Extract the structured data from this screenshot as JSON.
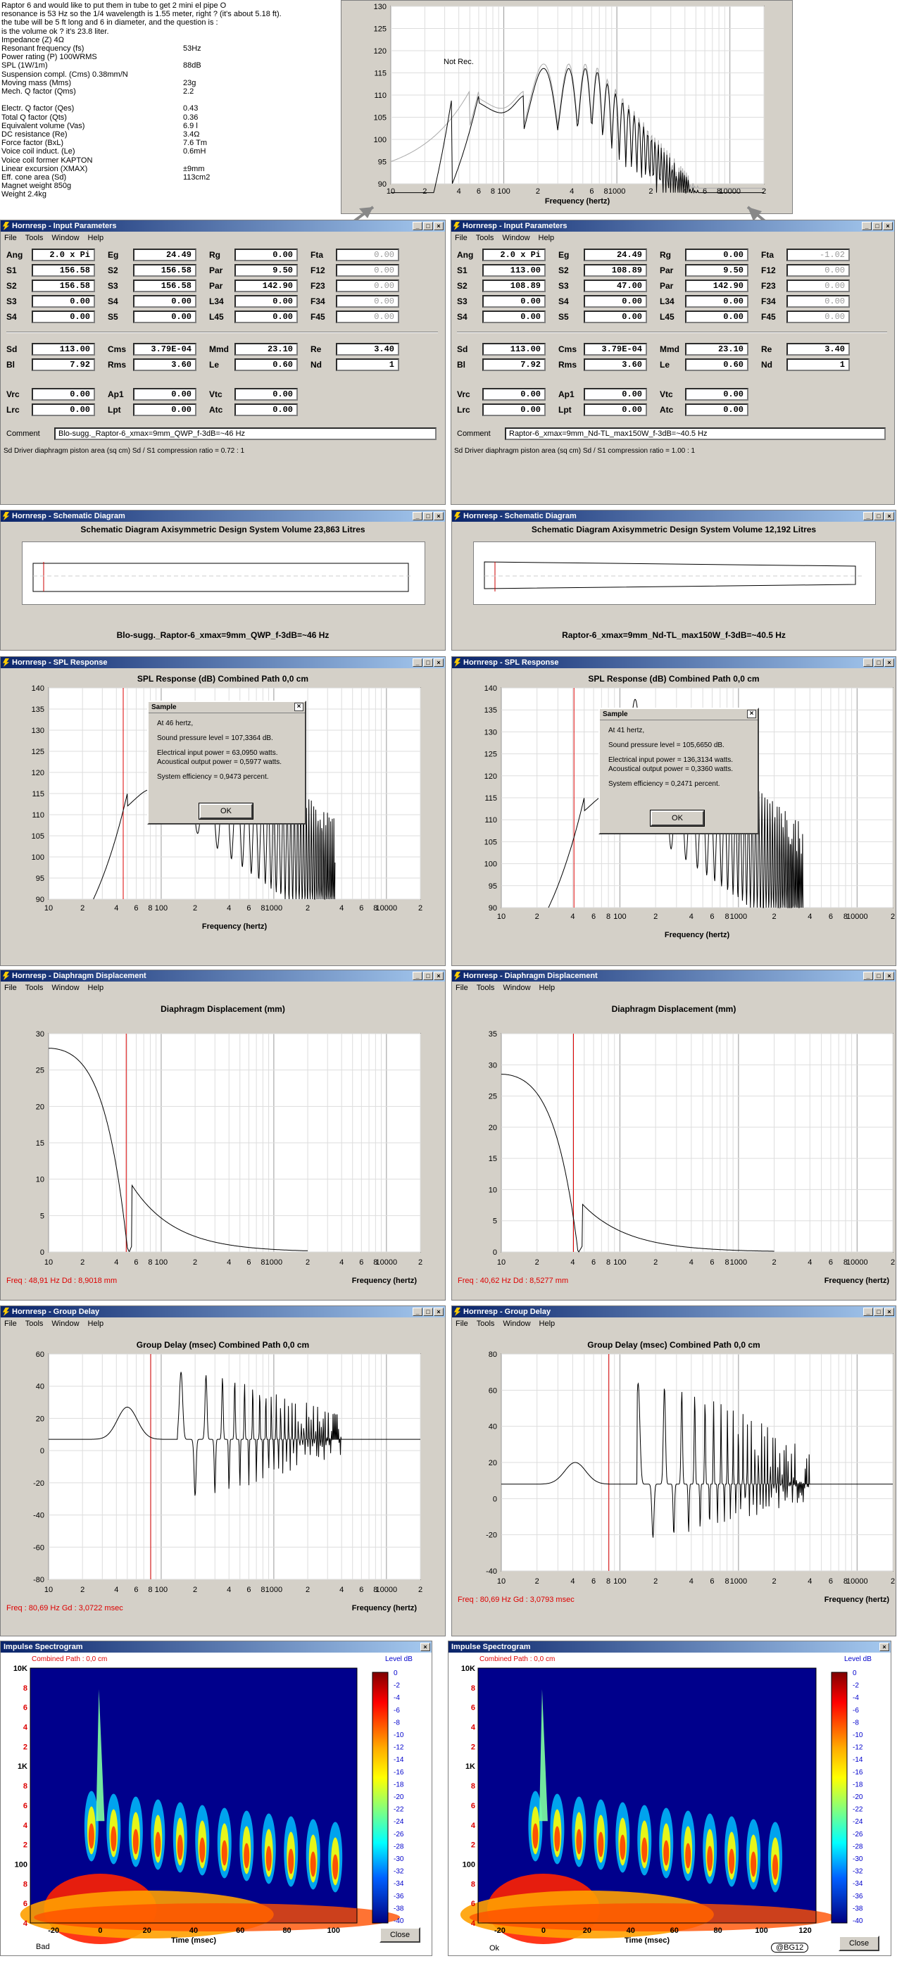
{
  "intro": {
    "lines": [
      "Raptor 6 and would like to put them in tube to get 2 mini el pipe O",
      "resonance is 53 Hz so the 1/4 wavelength is 1.55 meter, right ? (it's about 5.18 ft).",
      "the tube will be 5 ft long and 6 in diameter, and the question is :",
      "is the volume ok ? it's 23.8 liter."
    ],
    "specs": [
      [
        "Impedance (Z)    4Ω",
        ""
      ],
      [
        "Resonant frequency (fs)",
        "53Hz"
      ],
      [
        "Power rating (P) 100WRMS",
        ""
      ],
      [
        "SPL (1W/1m)",
        "88dB"
      ],
      [
        "Suspension compl. (Cms) 0.38mm/N",
        ""
      ],
      [
        "Moving mass (Mms)",
        "23g"
      ],
      [
        "Mech. Q factor (Qms)",
        "2.2"
      ],
      [
        "",
        ""
      ],
      [
        "Electr. Q factor (Qes)",
        "0.43"
      ],
      [
        "Total Q factor (Qts)",
        "0.36"
      ],
      [
        "Equivalent volume (Vas)",
        "6.9 l"
      ],
      [
        "DC resistance (Re)",
        "3.4Ω"
      ],
      [
        "Force factor (BxL)",
        "7.6 Tm"
      ],
      [
        "Voice coil induct. (Le)",
        "0.6mH"
      ],
      [
        "Voice coil former KAPTON",
        ""
      ],
      [
        "Linear excursion (XMAX)",
        "±9mm"
      ],
      [
        "Eff. cone area (Sd)",
        "113cm2"
      ],
      [
        "Magnet weight 850g",
        ""
      ],
      [
        "Weight  2.4kg",
        ""
      ]
    ]
  },
  "topchart": {
    "annotation": "Not Rec.",
    "xlabel": "Frequency (hertz)",
    "yticks": [
      "130",
      "125",
      "120",
      "115",
      "110",
      "105",
      "100",
      "95",
      "90"
    ],
    "xticks": [
      "10",
      "2",
      "4",
      "6",
      "8",
      "100",
      "2",
      "4",
      "6",
      "8",
      "1000",
      "2",
      "4",
      "6",
      "8",
      "10000",
      "2"
    ]
  },
  "menu": [
    "File",
    "Tools",
    "Window",
    "Help"
  ],
  "input_left": {
    "title": "Hornresp - Input Parameters",
    "rows1": [
      [
        "Ang",
        "2.0 x Pi",
        "Eg",
        "24.49",
        "Rg",
        "0.00",
        "Fta",
        "0.00"
      ],
      [
        "S1",
        "156.58",
        "S2",
        "156.58",
        "Par",
        "9.50",
        "F12",
        "0.00"
      ],
      [
        "S2",
        "156.58",
        "S3",
        "156.58",
        "Par",
        "142.90",
        "F23",
        "0.00"
      ],
      [
        "S3",
        "0.00",
        "S4",
        "0.00",
        "L34",
        "0.00",
        "F34",
        "0.00"
      ],
      [
        "S4",
        "0.00",
        "S5",
        "0.00",
        "L45",
        "0.00",
        "F45",
        "0.00"
      ]
    ],
    "rows2": [
      [
        "Sd",
        "113.00",
        "Cms",
        "3.79E-04",
        "Mmd",
        "23.10",
        "Re",
        "3.40"
      ],
      [
        "Bl",
        "7.92",
        "Rms",
        "3.60",
        "Le",
        "0.60",
        "Nd",
        "1"
      ]
    ],
    "rows3": [
      [
        "Vrc",
        "0.00",
        "Ap1",
        "0.00",
        "Vtc",
        "0.00"
      ],
      [
        "Lrc",
        "0.00",
        "Lpt",
        "0.00",
        "Atc",
        "0.00"
      ]
    ],
    "comment_label": "Comment",
    "comment": "Blo-sugg._Raptor-6_xmax=9mm_QWP_f-3dB=~46 Hz",
    "status": "Sd  Driver diaphragm piston area  (sq cm)   Sd / S1 compression ratio = 0.72 : 1"
  },
  "input_right": {
    "title": "Hornresp - Input Parameters",
    "rows1": [
      [
        "Ang",
        "2.0 x Pi",
        "Eg",
        "24.49",
        "Rg",
        "0.00",
        "Fta",
        "-1.02"
      ],
      [
        "S1",
        "113.00",
        "S2",
        "108.89",
        "Par",
        "9.50",
        "F12",
        "0.00"
      ],
      [
        "S2",
        "108.89",
        "S3",
        "47.00",
        "Par",
        "142.90",
        "F23",
        "0.00"
      ],
      [
        "S3",
        "0.00",
        "S4",
        "0.00",
        "L34",
        "0.00",
        "F34",
        "0.00"
      ],
      [
        "S4",
        "0.00",
        "S5",
        "0.00",
        "L45",
        "0.00",
        "F45",
        "0.00"
      ]
    ],
    "rows2": [
      [
        "Sd",
        "113.00",
        "Cms",
        "3.79E-04",
        "Mmd",
        "23.10",
        "Re",
        "3.40"
      ],
      [
        "Bl",
        "7.92",
        "Rms",
        "3.60",
        "Le",
        "0.60",
        "Nd",
        "1"
      ]
    ],
    "rows3": [
      [
        "Vrc",
        "0.00",
        "Ap1",
        "0.00",
        "Vtc",
        "0.00"
      ],
      [
        "Lrc",
        "0.00",
        "Lpt",
        "0.00",
        "Atc",
        "0.00"
      ]
    ],
    "comment_label": "Comment",
    "comment": "Raptor-6_xmax=9mm_Nd-TL_max150W_f-3dB=~40.5 Hz",
    "status": "Sd  Driver diaphragm piston area  (sq cm)   Sd / S1 compression ratio = 1.00 : 1"
  },
  "schem_left": {
    "title": "Hornresp - Schematic Diagram",
    "header": "Schematic Diagram   Axisymmetric Design   System Volume 23,863 Litres",
    "caption": "Blo-sugg._Raptor-6_xmax=9mm_QWP_f-3dB=~46 Hz"
  },
  "schem_right": {
    "title": "Hornresp - Schematic Diagram",
    "header": "Schematic Diagram   Axisymmetric Design   System Volume 12,192 Litres",
    "caption": "Raptor-6_xmax=9mm_Nd-TL_max150W_f-3dB=~40.5 Hz"
  },
  "spl_left": {
    "title": "Hornresp - SPL Response",
    "header": "SPL Response (dB)   Combined   Path 0,0 cm",
    "xlabel": "Frequency (hertz)",
    "yticks": [
      "140",
      "135",
      "130",
      "125",
      "120",
      "115",
      "110",
      "105",
      "100",
      "95",
      "90"
    ],
    "dlg": {
      "title": "Sample",
      "l1": "At 46 hertz,",
      "l2": "Sound pressure level = 107,3364 dB.",
      "l3": "Electrical input power = 63,0950 watts.",
      "l4": "Acoustical output power = 0,5977 watts.",
      "l5": "System efficiency = 0,9473 percent.",
      "ok": "OK"
    }
  },
  "spl_right": {
    "title": "Hornresp - SPL Response",
    "header": "SPL Response (dB)   Combined   Path 0,0 cm",
    "xlabel": "Frequency (hertz)",
    "yticks": [
      "140",
      "135",
      "130",
      "125",
      "120",
      "115",
      "110",
      "105",
      "100",
      "95",
      "90"
    ],
    "dlg": {
      "title": "Sample",
      "l1": "At 41 hertz,",
      "l2": "Sound pressure level = 105,6650 dB.",
      "l3": "Electrical input power = 136,3134 watts.",
      "l4": "Acoustical output power = 0,3360 watts.",
      "l5": "System efficiency = 0,2471 percent.",
      "ok": "OK"
    }
  },
  "disp_left": {
    "title": "Hornresp - Diaphragm Displacement",
    "header": "Diaphragm Displacement (mm)",
    "xlabel": "Frequency (hertz)",
    "yticks": [
      "30",
      "25",
      "20",
      "15",
      "10",
      "5",
      "0"
    ],
    "readout": "Freq : 48,91 Hz    Dd : 8,9018 mm"
  },
  "disp_right": {
    "title": "Hornresp - Diaphragm Displacement",
    "header": "Diaphragm Displacement (mm)",
    "xlabel": "Frequency (hertz)",
    "yticks": [
      "35",
      "30",
      "25",
      "20",
      "15",
      "10",
      "5",
      "0"
    ],
    "readout": "Freq : 40,62 Hz    Dd : 8,5277 mm"
  },
  "gd_left": {
    "title": "Hornresp - Group Delay",
    "header": "Group Delay (msec)   Combined   Path 0,0 cm",
    "xlabel": "Frequency (hertz)",
    "yticks": [
      "60",
      "40",
      "20",
      "0",
      "-20",
      "-40",
      "-60",
      "-80"
    ],
    "readout": "Freq : 80,69 Hz    Gd : 3,0722 msec"
  },
  "gd_right": {
    "title": "Hornresp - Group Delay",
    "header": "Group Delay (msec)   Combined   Path 0,0 cm",
    "xlabel": "Frequency (hertz)",
    "yticks": [
      "80",
      "60",
      "40",
      "20",
      "0",
      "-20",
      "-40"
    ],
    "readout": "Freq : 80,69 Hz    Gd : 3,0793 msec"
  },
  "xticks_freq": [
    "10",
    "2",
    "4",
    "6",
    "8",
    "100",
    "2",
    "4",
    "6",
    "8",
    "1000",
    "2",
    "4",
    "6",
    "8",
    "10000",
    "2"
  ],
  "spec_left": {
    "title": "Impulse Spectrogram",
    "sub": "Combined    Path : 0,0 cm",
    "level": "Level   dB",
    "xlabel": "Time (msec)",
    "xticks": [
      "-20",
      "0",
      "20",
      "40",
      "60",
      "80",
      "100"
    ],
    "yticks": [
      "10K",
      "8",
      "6",
      "4",
      "2",
      "1K",
      "8",
      "6",
      "4",
      "2",
      "100",
      "8",
      "6",
      "4"
    ],
    "cticks": [
      "0",
      "-2",
      "-4",
      "-6",
      "-8",
      "-10",
      "-12",
      "-14",
      "-16",
      "-18",
      "-20",
      "-22",
      "-24",
      "-26",
      "-28",
      "-30",
      "-32",
      "-34",
      "-36",
      "-38",
      "-40"
    ],
    "close": "Close",
    "note": "Bad"
  },
  "spec_right": {
    "title": "Impulse Spectrogram",
    "sub": "Combined    Path : 0,0 cm",
    "level": "Level   dB",
    "xlabel": "Time (msec)",
    "xticks": [
      "-20",
      "0",
      "20",
      "40",
      "60",
      "80",
      "100",
      "120"
    ],
    "yticks": [
      "10K",
      "8",
      "6",
      "4",
      "2",
      "1K",
      "8",
      "6",
      "4",
      "2",
      "100",
      "8",
      "6",
      "4"
    ],
    "cticks": [
      "0",
      "-2",
      "-4",
      "-6",
      "-8",
      "-10",
      "-12",
      "-14",
      "-16",
      "-18",
      "-20",
      "-22",
      "-24",
      "-26",
      "-28",
      "-30",
      "-32",
      "-34",
      "-36",
      "-38",
      "-40"
    ],
    "close": "Close",
    "note": "Ok",
    "credit": "@BG12"
  },
  "colors": {
    "titlebar": "#0a246a",
    "window": "#d4d0c8",
    "marker": "#d00000"
  }
}
